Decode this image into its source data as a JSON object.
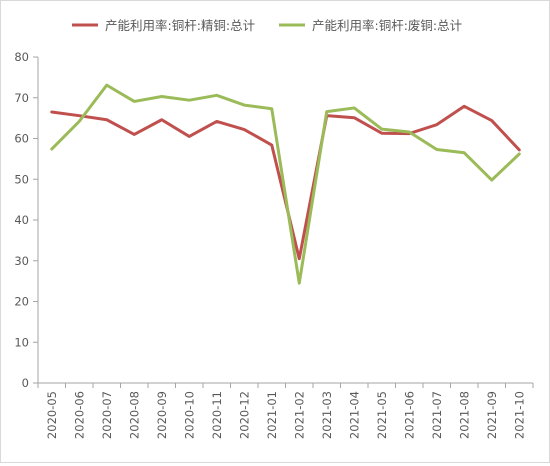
{
  "chart_data": {
    "type": "line",
    "categories": [
      "2020-05",
      "2020-06",
      "2020-07",
      "2020-08",
      "2020-09",
      "2020-10",
      "2020-11",
      "2020-12",
      "2021-01",
      "2021-02",
      "2021-03",
      "2021-04",
      "2021-05",
      "2021-06",
      "2021-07",
      "2021-08",
      "2021-09",
      "2021-10"
    ],
    "series": [
      {
        "name": "产能利用率:铜杆:精铜:总计",
        "color": "#c0504d",
        "values": [
          66.5,
          65.6,
          64.6,
          61.0,
          64.6,
          60.5,
          64.2,
          62.2,
          58.4,
          30.5,
          65.6,
          65.1,
          61.3,
          61.2,
          63.4,
          67.9,
          64.4,
          57.2
        ]
      },
      {
        "name": "产能利用率:铜杆:废铜:总计",
        "color": "#9bbb59",
        "values": [
          57.4,
          64.2,
          73.1,
          69.1,
          70.3,
          69.4,
          70.6,
          68.2,
          67.3,
          24.5,
          66.6,
          67.5,
          62.3,
          61.6,
          57.3,
          56.5,
          49.8,
          56.2
        ]
      }
    ],
    "y_ticks": [
      "0",
      "10",
      "20",
      "30",
      "40",
      "50",
      "60",
      "70",
      "80"
    ],
    "ylim": [
      0,
      80
    ],
    "legend_position": "top",
    "grid": false
  }
}
